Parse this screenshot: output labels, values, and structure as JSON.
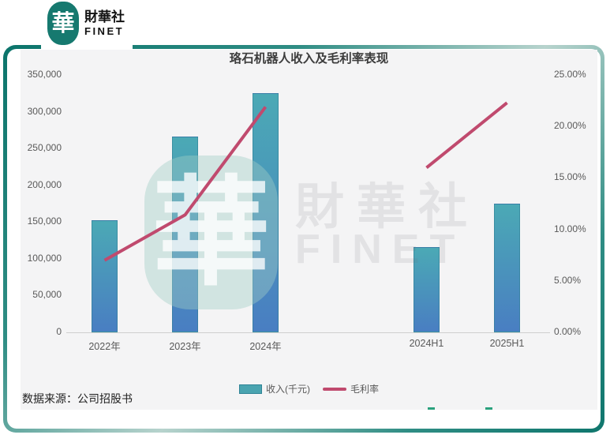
{
  "brand": {
    "seal_char": "華",
    "name_cn": "財華社",
    "name_en": "FINET"
  },
  "watermark": {
    "cn": "財華社",
    "en": "FINET",
    "seal_char": "華"
  },
  "source_note": "数据来源：公司招股书",
  "colors": {
    "frame_teal": "#0D746B",
    "panel_bg": "#F4F4F5",
    "bar_top": "#4BA9B5",
    "bar_bottom": "#497EC2",
    "line": "#C04A6E",
    "axis_text": "#595959"
  },
  "chart_data": {
    "type": "bar+line",
    "title": "珞石机器人收入及毛利率表现",
    "categories": [
      "2022年",
      "2023年",
      "2024年",
      "2024H1",
      "2025H1"
    ],
    "series": [
      {
        "name": "收入(千元)",
        "type": "bar",
        "axis": "left",
        "values": [
          152000,
          266000,
          325000,
          116000,
          175000
        ]
      },
      {
        "name": "毛利率",
        "type": "line",
        "axis": "right",
        "values_pct": [
          7.0,
          11.4,
          21.9,
          16.0,
          22.3
        ],
        "segments": [
          [
            0,
            1,
            2
          ],
          [
            3,
            4
          ]
        ]
      }
    ],
    "left_axis": {
      "label": "收入(千元)",
      "min": 0,
      "max": 350000,
      "ticks": [
        "350,000",
        "300,000",
        "250,000",
        "200,000",
        "150,000",
        "100,000",
        "50,000",
        "0"
      ]
    },
    "right_axis": {
      "label": "毛利率",
      "min": 0,
      "max": 25,
      "ticks": [
        "25.00%",
        "20.00%",
        "15.00%",
        "10.00%",
        "5.00%",
        "0.00%"
      ]
    },
    "legend": [
      "收入(千元)",
      "毛利率"
    ],
    "grid": "off",
    "legend_position": "bottom-center"
  }
}
